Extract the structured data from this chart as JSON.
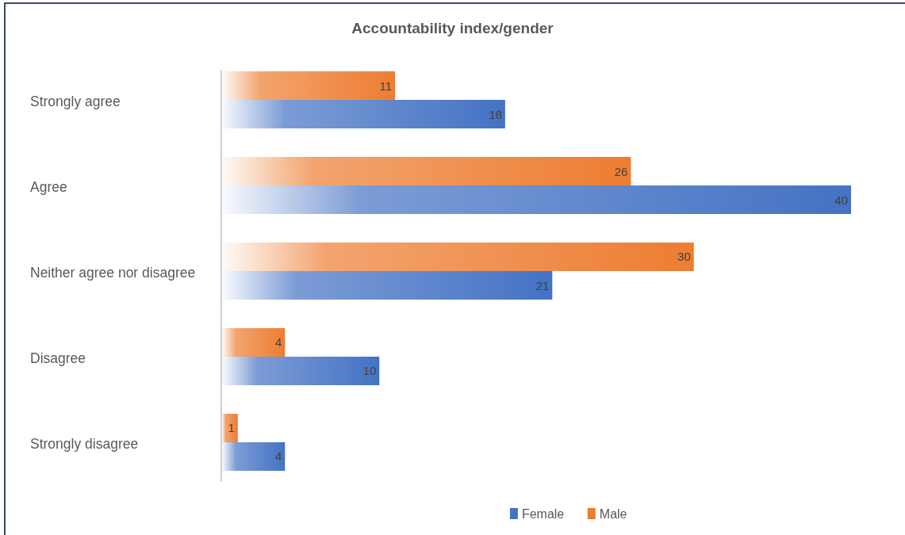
{
  "chart_data": {
    "type": "bar",
    "orientation": "horizontal",
    "title": "Accountability index/gender",
    "categories": [
      "Strongly agree",
      "Agree",
      "Neither agree nor disagree",
      "Disagree",
      "Strongly disagree"
    ],
    "series": [
      {
        "name": "Female",
        "color": "#4472c4",
        "values": [
          18,
          40,
          21,
          10,
          4
        ]
      },
      {
        "name": "Male",
        "color": "#ed7d31",
        "values": [
          11,
          26,
          30,
          4,
          1
        ]
      }
    ],
    "data_labels": true,
    "legend": "bottom"
  }
}
